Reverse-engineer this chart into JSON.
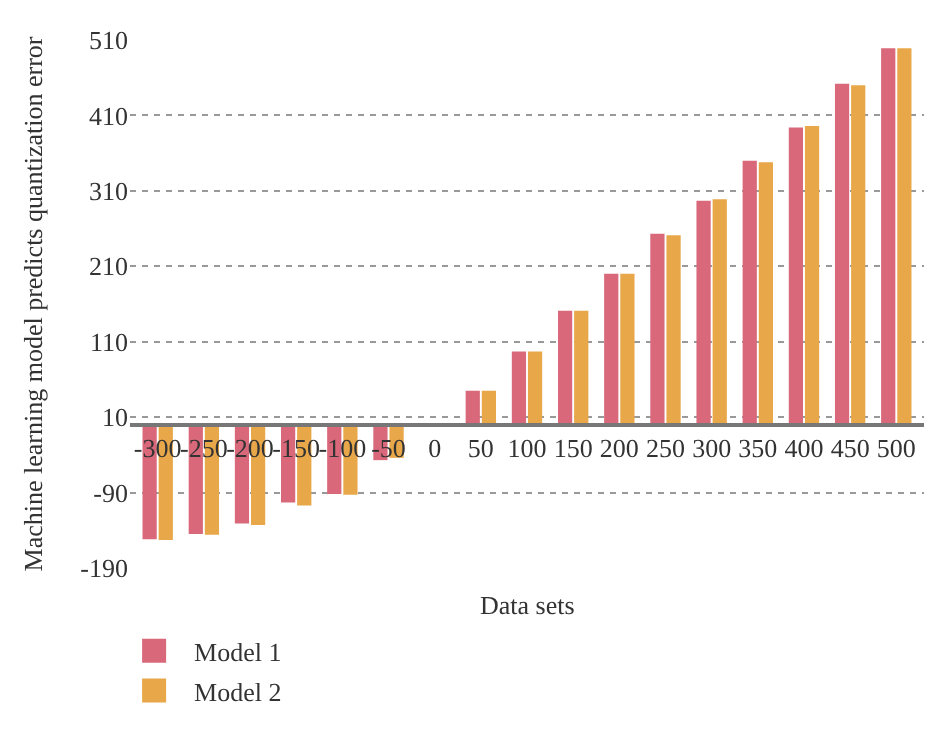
{
  "chart_data": {
    "type": "bar",
    "xlabel": "Data sets",
    "ylabel": "Machine learning model predicts quantization error",
    "categories": [
      "-300",
      "-250",
      "-200",
      "-150",
      "-100",
      "-50",
      "0",
      "50",
      "100",
      "150",
      "200",
      "250",
      "300",
      "350",
      "400",
      "450",
      "500"
    ],
    "series": [
      {
        "name": "Model 1",
        "color": "#d8687a",
        "values": [
          -152,
          -145,
          -131,
          -103,
          -92,
          -47,
          0,
          45,
          97,
          151,
          200,
          253,
          297,
          350,
          394,
          452,
          499
        ]
      },
      {
        "name": "Model 2",
        "color": "#e8a748",
        "values": [
          -153,
          -146,
          -133,
          -107,
          -93,
          -44,
          0,
          45,
          97,
          151,
          200,
          251,
          299,
          348,
          396,
          450,
          499
        ]
      }
    ],
    "ylim": [
      -190,
      510
    ],
    "yticks": [
      -190,
      -90,
      10,
      110,
      210,
      310,
      410,
      510
    ],
    "grid": "y",
    "legend": "bottom left"
  }
}
